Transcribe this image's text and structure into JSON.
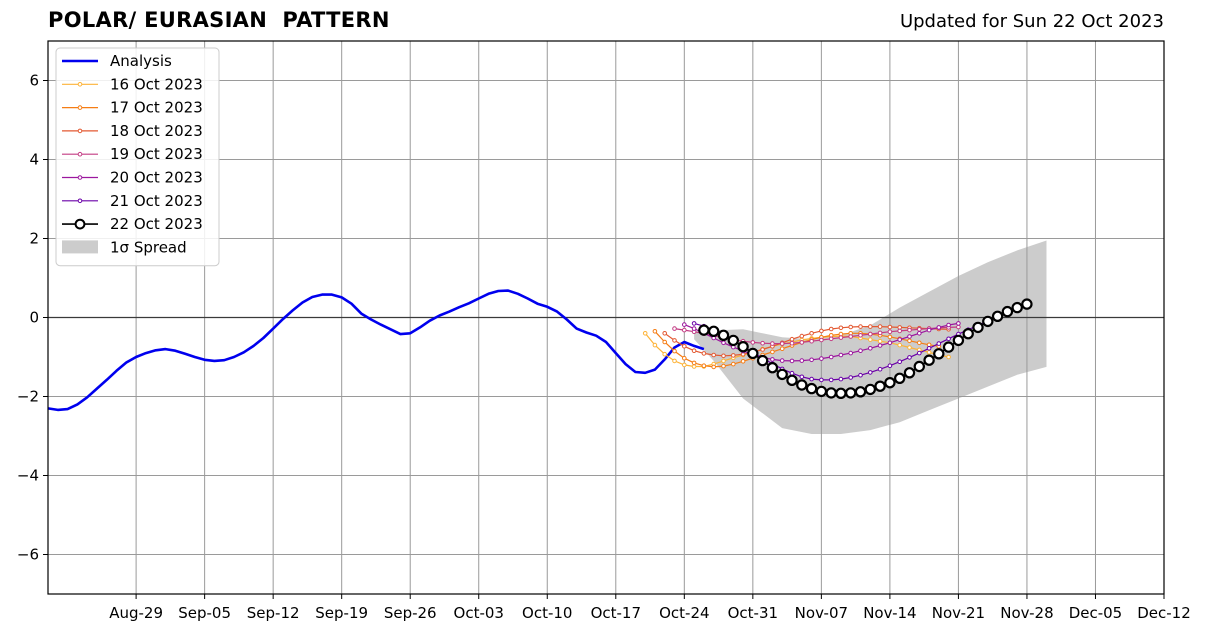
{
  "chart_data": {
    "type": "line",
    "title": "POLAR/ EURASIAN  PATTERN",
    "subtitle": "Updated for Sun 22 Oct 2023",
    "xlabel": "",
    "ylabel": "",
    "x_range": [
      "2023-08-20",
      "2023-12-12"
    ],
    "ylim": [
      -7,
      7
    ],
    "y_ticks": [
      6,
      4,
      2,
      0,
      -2,
      -4,
      -6
    ],
    "y_tick_labels": [
      "6",
      "4",
      "2",
      "0",
      "−2",
      "−4",
      "−6"
    ],
    "x_ticks": [
      "2023-08-29",
      "2023-09-05",
      "2023-09-12",
      "2023-09-19",
      "2023-09-26",
      "2023-10-03",
      "2023-10-10",
      "2023-10-17",
      "2023-10-24",
      "2023-10-31",
      "2023-11-07",
      "2023-11-14",
      "2023-11-21",
      "2023-11-28",
      "2023-12-05",
      "2023-12-12"
    ],
    "x_tick_labels": [
      "Aug-29",
      "Sep-05",
      "Sep-12",
      "Sep-19",
      "Sep-26",
      "Oct-03",
      "Oct-10",
      "Oct-17",
      "Oct-24",
      "Oct-31",
      "Nov-07",
      "Nov-14",
      "Nov-21",
      "Nov-28",
      "Dec-05",
      "Dec-12"
    ],
    "grid": true,
    "legend_position": "top-left",
    "analysis": {
      "name": "Analysis",
      "color": "#0000ee",
      "points": [
        [
          "2023-08-20",
          -2.3
        ],
        [
          "2023-08-21",
          -2.34
        ],
        [
          "2023-08-22",
          -2.32
        ],
        [
          "2023-08-23",
          -2.2
        ],
        [
          "2023-08-24",
          -2.02
        ],
        [
          "2023-08-25",
          -1.8
        ],
        [
          "2023-08-26",
          -1.58
        ],
        [
          "2023-08-27",
          -1.35
        ],
        [
          "2023-08-28",
          -1.14
        ],
        [
          "2023-08-29",
          -1.0
        ],
        [
          "2023-08-30",
          -0.9
        ],
        [
          "2023-08-31",
          -0.83
        ],
        [
          "2023-09-01",
          -0.8
        ],
        [
          "2023-09-02",
          -0.84
        ],
        [
          "2023-09-03",
          -0.92
        ],
        [
          "2023-09-04",
          -1.0
        ],
        [
          "2023-09-05",
          -1.07
        ],
        [
          "2023-09-06",
          -1.1
        ],
        [
          "2023-09-07",
          -1.08
        ],
        [
          "2023-09-08",
          -1.0
        ],
        [
          "2023-09-09",
          -0.88
        ],
        [
          "2023-09-10",
          -0.72
        ],
        [
          "2023-09-11",
          -0.52
        ],
        [
          "2023-09-12",
          -0.28
        ],
        [
          "2023-09-13",
          -0.04
        ],
        [
          "2023-09-14",
          0.18
        ],
        [
          "2023-09-15",
          0.38
        ],
        [
          "2023-09-16",
          0.52
        ],
        [
          "2023-09-17",
          0.58
        ],
        [
          "2023-09-18",
          0.58
        ],
        [
          "2023-09-19",
          0.51
        ],
        [
          "2023-09-20",
          0.35
        ],
        [
          "2023-09-21",
          0.1
        ],
        [
          "2023-09-22",
          -0.05
        ],
        [
          "2023-09-23",
          -0.18
        ],
        [
          "2023-09-24",
          -0.3
        ],
        [
          "2023-09-25",
          -0.42
        ],
        [
          "2023-09-26",
          -0.4
        ],
        [
          "2023-09-27",
          -0.25
        ],
        [
          "2023-09-28",
          -0.08
        ],
        [
          "2023-09-29",
          0.05
        ],
        [
          "2023-09-30",
          0.15
        ],
        [
          "2023-10-01",
          0.26
        ],
        [
          "2023-10-02",
          0.36
        ],
        [
          "2023-10-03",
          0.48
        ],
        [
          "2023-10-04",
          0.6
        ],
        [
          "2023-10-05",
          0.67
        ],
        [
          "2023-10-06",
          0.68
        ],
        [
          "2023-10-07",
          0.6
        ],
        [
          "2023-10-08",
          0.48
        ],
        [
          "2023-10-09",
          0.35
        ],
        [
          "2023-10-10",
          0.27
        ],
        [
          "2023-10-11",
          0.15
        ],
        [
          "2023-10-12",
          -0.05
        ],
        [
          "2023-10-13",
          -0.28
        ],
        [
          "2023-10-14",
          -0.38
        ],
        [
          "2023-10-15",
          -0.46
        ],
        [
          "2023-10-16",
          -0.62
        ],
        [
          "2023-10-17",
          -0.9
        ],
        [
          "2023-10-18",
          -1.18
        ],
        [
          "2023-10-19",
          -1.38
        ],
        [
          "2023-10-20",
          -1.4
        ],
        [
          "2023-10-21",
          -1.32
        ],
        [
          "2023-10-22",
          -1.06
        ],
        [
          "2023-10-23",
          -0.76
        ],
        [
          "2023-10-24",
          -0.62
        ],
        [
          "2023-10-25",
          -0.72
        ],
        [
          "2023-10-26",
          -0.8
        ]
      ]
    },
    "series": [
      {
        "name": "16 Oct 2023",
        "color": "#fdb338",
        "start": "2023-10-20",
        "values": [
          -0.4,
          -0.7,
          -0.93,
          -1.1,
          -1.2,
          -1.24,
          -1.24,
          -1.18,
          -1.1,
          -1.02,
          -0.95,
          -0.88,
          -0.8,
          -0.73,
          -0.67,
          -0.62,
          -0.57,
          -0.53,
          -0.5,
          -0.48,
          -0.47,
          -0.48,
          -0.52,
          -0.56,
          -0.6,
          -0.64,
          -0.7,
          -0.76,
          -0.82,
          -0.88,
          -0.95,
          -1.0
        ]
      },
      {
        "name": "17 Oct 2023",
        "color": "#f57d15",
        "start": "2023-10-21",
        "values": [
          -0.35,
          -0.62,
          -0.85,
          -1.03,
          -1.15,
          -1.22,
          -1.25,
          -1.23,
          -1.18,
          -1.11,
          -1.03,
          -0.95,
          -0.87,
          -0.79,
          -0.71,
          -0.63,
          -0.56,
          -0.5,
          -0.45,
          -0.42,
          -0.4,
          -0.4,
          -0.42,
          -0.45,
          -0.49,
          -0.54,
          -0.59,
          -0.64,
          -0.69,
          -0.73
        ]
      },
      {
        "name": "18 Oct 2023",
        "color": "#e35932",
        "start": "2023-10-22",
        "values": [
          -0.4,
          -0.58,
          -0.73,
          -0.84,
          -0.91,
          -0.95,
          -0.97,
          -0.96,
          -0.93,
          -0.88,
          -0.81,
          -0.73,
          -0.64,
          -0.55,
          -0.47,
          -0.4,
          -0.34,
          -0.29,
          -0.26,
          -0.24,
          -0.23,
          -0.23,
          -0.23,
          -0.24,
          -0.25,
          -0.26,
          -0.27,
          -0.28,
          -0.29,
          -0.3
        ]
      },
      {
        "name": "19 Oct 2023",
        "color": "#c33b83",
        "start": "2023-10-23",
        "values": [
          -0.28,
          -0.32,
          -0.36,
          -0.41,
          -0.46,
          -0.51,
          -0.56,
          -0.6,
          -0.63,
          -0.65,
          -0.66,
          -0.66,
          -0.65,
          -0.63,
          -0.6,
          -0.57,
          -0.54,
          -0.51,
          -0.48,
          -0.45,
          -0.42,
          -0.39,
          -0.36,
          -0.34,
          -0.32,
          -0.3,
          -0.28,
          -0.26,
          -0.25,
          -0.24
        ]
      },
      {
        "name": "20 Oct 2023",
        "color": "#9c179e",
        "start": "2023-10-24",
        "values": [
          -0.18,
          -0.28,
          -0.4,
          -0.52,
          -0.64,
          -0.75,
          -0.85,
          -0.94,
          -1.01,
          -1.06,
          -1.09,
          -1.1,
          -1.09,
          -1.07,
          -1.04,
          -1.0,
          -0.95,
          -0.9,
          -0.84,
          -0.78,
          -0.71,
          -0.64,
          -0.56,
          -0.48,
          -0.4,
          -0.32,
          -0.25,
          -0.19,
          -0.15
        ]
      },
      {
        "name": "21 Oct 2023",
        "color": "#6a00a8",
        "start": "2023-10-25",
        "values": [
          -0.15,
          -0.22,
          -0.32,
          -0.44,
          -0.58,
          -0.73,
          -0.88,
          -1.03,
          -1.17,
          -1.3,
          -1.41,
          -1.5,
          -1.56,
          -1.58,
          -1.58,
          -1.56,
          -1.52,
          -1.46,
          -1.39,
          -1.31,
          -1.22,
          -1.12,
          -1.01,
          -0.9,
          -0.78,
          -0.66,
          -0.54,
          -0.42,
          -0.31,
          -0.2,
          -0.08,
          0.0
        ]
      },
      {
        "name": "22 Oct 2023",
        "color": "#000000",
        "start": "2023-10-26",
        "values": [
          -0.32,
          -0.35,
          -0.45,
          -0.58,
          -0.74,
          -0.91,
          -1.09,
          -1.27,
          -1.44,
          -1.59,
          -1.71,
          -1.8,
          -1.87,
          -1.91,
          -1.92,
          -1.91,
          -1.88,
          -1.82,
          -1.74,
          -1.65,
          -1.54,
          -1.4,
          -1.24,
          -1.08,
          -0.92,
          -0.75,
          -0.58,
          -0.41,
          -0.25,
          -0.1,
          0.03,
          0.15,
          0.25,
          0.34
        ]
      }
    ],
    "spread": {
      "name": "1σ Spread",
      "color": "#cccccc",
      "upper": [
        [
          "2023-10-25",
          -0.35
        ],
        [
          "2023-10-30",
          -0.3
        ],
        [
          "2023-11-03",
          -0.5
        ],
        [
          "2023-11-06",
          -0.55
        ],
        [
          "2023-11-09",
          -0.45
        ],
        [
          "2023-11-12",
          -0.2
        ],
        [
          "2023-11-15",
          0.25
        ],
        [
          "2023-11-18",
          0.65
        ],
        [
          "2023-11-21",
          1.05
        ],
        [
          "2023-11-24",
          1.4
        ],
        [
          "2023-11-27",
          1.7
        ],
        [
          "2023-11-30",
          1.95
        ]
      ],
      "lower": [
        [
          "2023-11-30",
          -1.25
        ],
        [
          "2023-11-27",
          -1.45
        ],
        [
          "2023-11-24",
          -1.75
        ],
        [
          "2023-11-21",
          -2.05
        ],
        [
          "2023-11-18",
          -2.35
        ],
        [
          "2023-11-15",
          -2.65
        ],
        [
          "2023-11-12",
          -2.85
        ],
        [
          "2023-11-09",
          -2.95
        ],
        [
          "2023-11-06",
          -2.95
        ],
        [
          "2023-11-03",
          -2.8
        ],
        [
          "2023-10-30",
          -2.05
        ],
        [
          "2023-10-27",
          -1.1
        ],
        [
          "2023-10-25",
          -0.55
        ]
      ]
    }
  }
}
